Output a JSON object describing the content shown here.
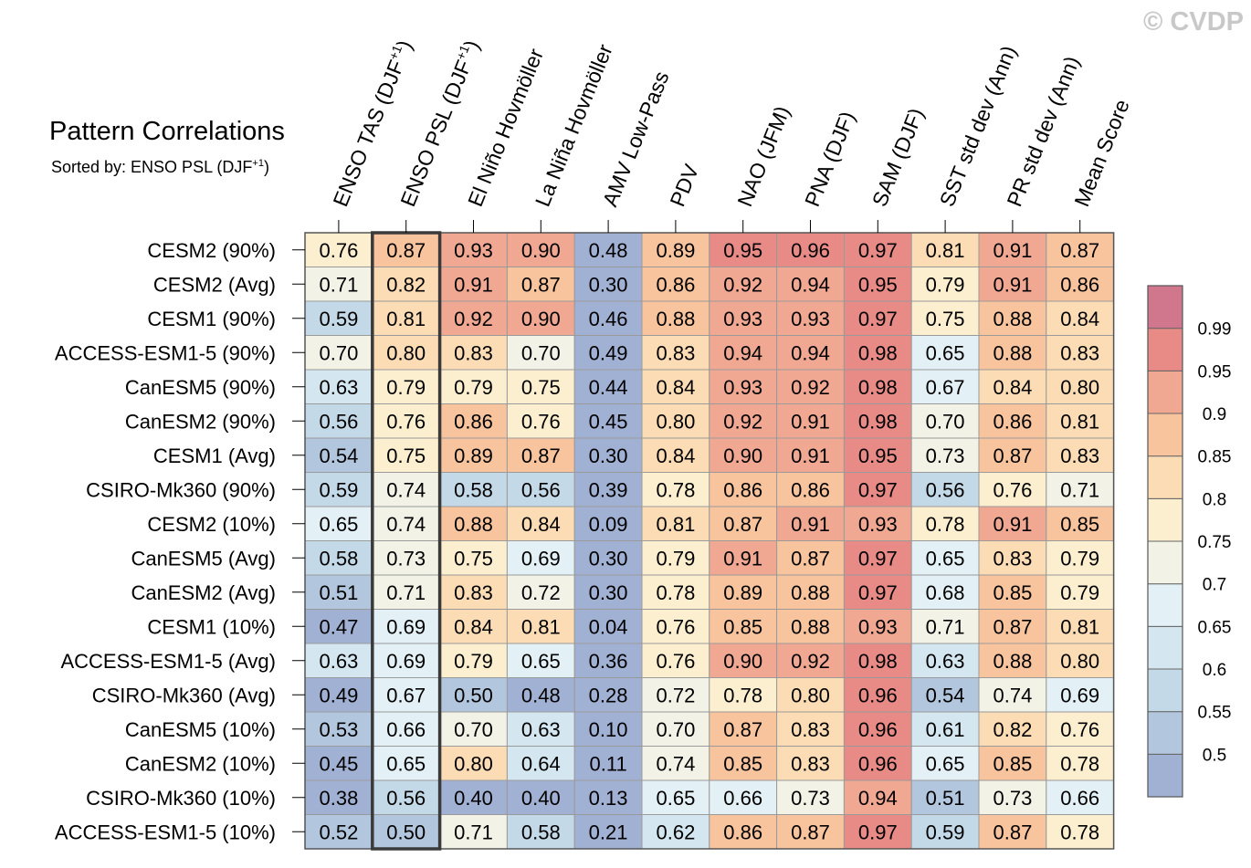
{
  "watermark": "© CVDP",
  "chart_data": {
    "type": "heatmap",
    "title": "Pattern Correlations",
    "subtitle_prefix": "Sorted by: ENSO PSL (DJF",
    "subtitle_sup": "+1",
    "subtitle_suffix": ")",
    "columns": [
      {
        "label": "ENSO TAS (DJF",
        "sup": "+1",
        "suffix": ")"
      },
      {
        "label": "ENSO PSL (DJF",
        "sup": "+1",
        "suffix": ")"
      },
      {
        "label": "El Niño Hovmöller",
        "sup": "",
        "suffix": ""
      },
      {
        "label": "La Niña Hovmöller",
        "sup": "",
        "suffix": ""
      },
      {
        "label": "AMV Low-Pass",
        "sup": "",
        "suffix": ""
      },
      {
        "label": "PDV",
        "sup": "",
        "suffix": ""
      },
      {
        "label": "NAO (JFM)",
        "sup": "",
        "suffix": ""
      },
      {
        "label": "PNA (DJF)",
        "sup": "",
        "suffix": ""
      },
      {
        "label": "SAM (DJF)",
        "sup": "",
        "suffix": ""
      },
      {
        "label": "SST std dev (Ann)",
        "sup": "",
        "suffix": ""
      },
      {
        "label": "PR std dev (Ann)",
        "sup": "",
        "suffix": ""
      },
      {
        "label": "Mean Score",
        "sup": "",
        "suffix": ""
      }
    ],
    "highlighted_column": 1,
    "rows": [
      "CESM2 (90%)",
      "CESM2 (Avg)",
      "CESM1 (90%)",
      "ACCESS-ESM1-5 (90%)",
      "CanESM5 (90%)",
      "CanESM2 (90%)",
      "CESM1 (Avg)",
      "CSIRO-Mk360 (90%)",
      "CESM2 (10%)",
      "CanESM5 (Avg)",
      "CanESM2 (Avg)",
      "CESM1 (10%)",
      "ACCESS-ESM1-5 (Avg)",
      "CSIRO-Mk360 (Avg)",
      "CanESM5 (10%)",
      "CanESM2 (10%)",
      "CSIRO-Mk360 (10%)",
      "ACCESS-ESM1-5 (10%)"
    ],
    "values": [
      [
        "0.76",
        "0.87",
        "0.93",
        "0.90",
        "0.48",
        "0.89",
        "0.95",
        "0.96",
        "0.97",
        "0.81",
        "0.91",
        "0.87"
      ],
      [
        "0.71",
        "0.82",
        "0.91",
        "0.87",
        "0.30",
        "0.86",
        "0.92",
        "0.94",
        "0.95",
        "0.79",
        "0.91",
        "0.86"
      ],
      [
        "0.59",
        "0.81",
        "0.92",
        "0.90",
        "0.46",
        "0.88",
        "0.93",
        "0.93",
        "0.97",
        "0.75",
        "0.88",
        "0.84"
      ],
      [
        "0.70",
        "0.80",
        "0.83",
        "0.70",
        "0.49",
        "0.83",
        "0.94",
        "0.94",
        "0.98",
        "0.65",
        "0.88",
        "0.83"
      ],
      [
        "0.63",
        "0.79",
        "0.79",
        "0.75",
        "0.44",
        "0.84",
        "0.93",
        "0.92",
        "0.98",
        "0.67",
        "0.84",
        "0.80"
      ],
      [
        "0.56",
        "0.76",
        "0.86",
        "0.76",
        "0.45",
        "0.80",
        "0.92",
        "0.91",
        "0.98",
        "0.70",
        "0.86",
        "0.81"
      ],
      [
        "0.54",
        "0.75",
        "0.89",
        "0.87",
        "0.30",
        "0.84",
        "0.90",
        "0.91",
        "0.95",
        "0.73",
        "0.87",
        "0.83"
      ],
      [
        "0.59",
        "0.74",
        "0.58",
        "0.56",
        "0.39",
        "0.78",
        "0.86",
        "0.86",
        "0.97",
        "0.56",
        "0.76",
        "0.71"
      ],
      [
        "0.65",
        "0.74",
        "0.88",
        "0.84",
        "0.09",
        "0.81",
        "0.87",
        "0.91",
        "0.93",
        "0.78",
        "0.91",
        "0.85"
      ],
      [
        "0.58",
        "0.73",
        "0.75",
        "0.69",
        "0.30",
        "0.79",
        "0.91",
        "0.87",
        "0.97",
        "0.65",
        "0.83",
        "0.79"
      ],
      [
        "0.51",
        "0.71",
        "0.83",
        "0.72",
        "0.30",
        "0.78",
        "0.89",
        "0.88",
        "0.97",
        "0.68",
        "0.85",
        "0.79"
      ],
      [
        "0.47",
        "0.69",
        "0.84",
        "0.81",
        "0.04",
        "0.76",
        "0.85",
        "0.88",
        "0.93",
        "0.71",
        "0.87",
        "0.81"
      ],
      [
        "0.63",
        "0.69",
        "0.79",
        "0.65",
        "0.36",
        "0.76",
        "0.90",
        "0.92",
        "0.98",
        "0.63",
        "0.88",
        "0.80"
      ],
      [
        "0.49",
        "0.67",
        "0.50",
        "0.48",
        "0.28",
        "0.72",
        "0.78",
        "0.80",
        "0.96",
        "0.54",
        "0.74",
        "0.69"
      ],
      [
        "0.53",
        "0.66",
        "0.70",
        "0.63",
        "0.10",
        "0.70",
        "0.87",
        "0.83",
        "0.96",
        "0.61",
        "0.82",
        "0.76"
      ],
      [
        "0.45",
        "0.65",
        "0.80",
        "0.64",
        "0.11",
        "0.74",
        "0.85",
        "0.83",
        "0.96",
        "0.65",
        "0.85",
        "0.78"
      ],
      [
        "0.38",
        "0.56",
        "0.40",
        "0.40",
        "0.13",
        "0.65",
        "0.66",
        "0.73",
        "0.94",
        "0.51",
        "0.73",
        "0.66"
      ],
      [
        "0.52",
        "0.50",
        "0.71",
        "0.58",
        "0.21",
        "0.62",
        "0.86",
        "0.87",
        "0.97",
        "0.59",
        "0.87",
        "0.78"
      ]
    ],
    "colorbar": {
      "levels": [
        0.5,
        0.55,
        0.6,
        0.65,
        0.7,
        0.75,
        0.8,
        0.85,
        0.9,
        0.95,
        0.99
      ],
      "labels": [
        "0.5",
        "0.55",
        "0.6",
        "0.65",
        "0.7",
        "0.75",
        "0.8",
        "0.85",
        "0.9",
        "0.95",
        "0.99"
      ],
      "colors": [
        "#a1b1d4",
        "#b2c7de",
        "#c4d9e8",
        "#d4e6f0",
        "#e3f0f5",
        "#f2f2e6",
        "#fcefcf",
        "#fbdcb4",
        "#f8c49d",
        "#f1a892",
        "#e88b87",
        "#d0778e"
      ]
    }
  }
}
